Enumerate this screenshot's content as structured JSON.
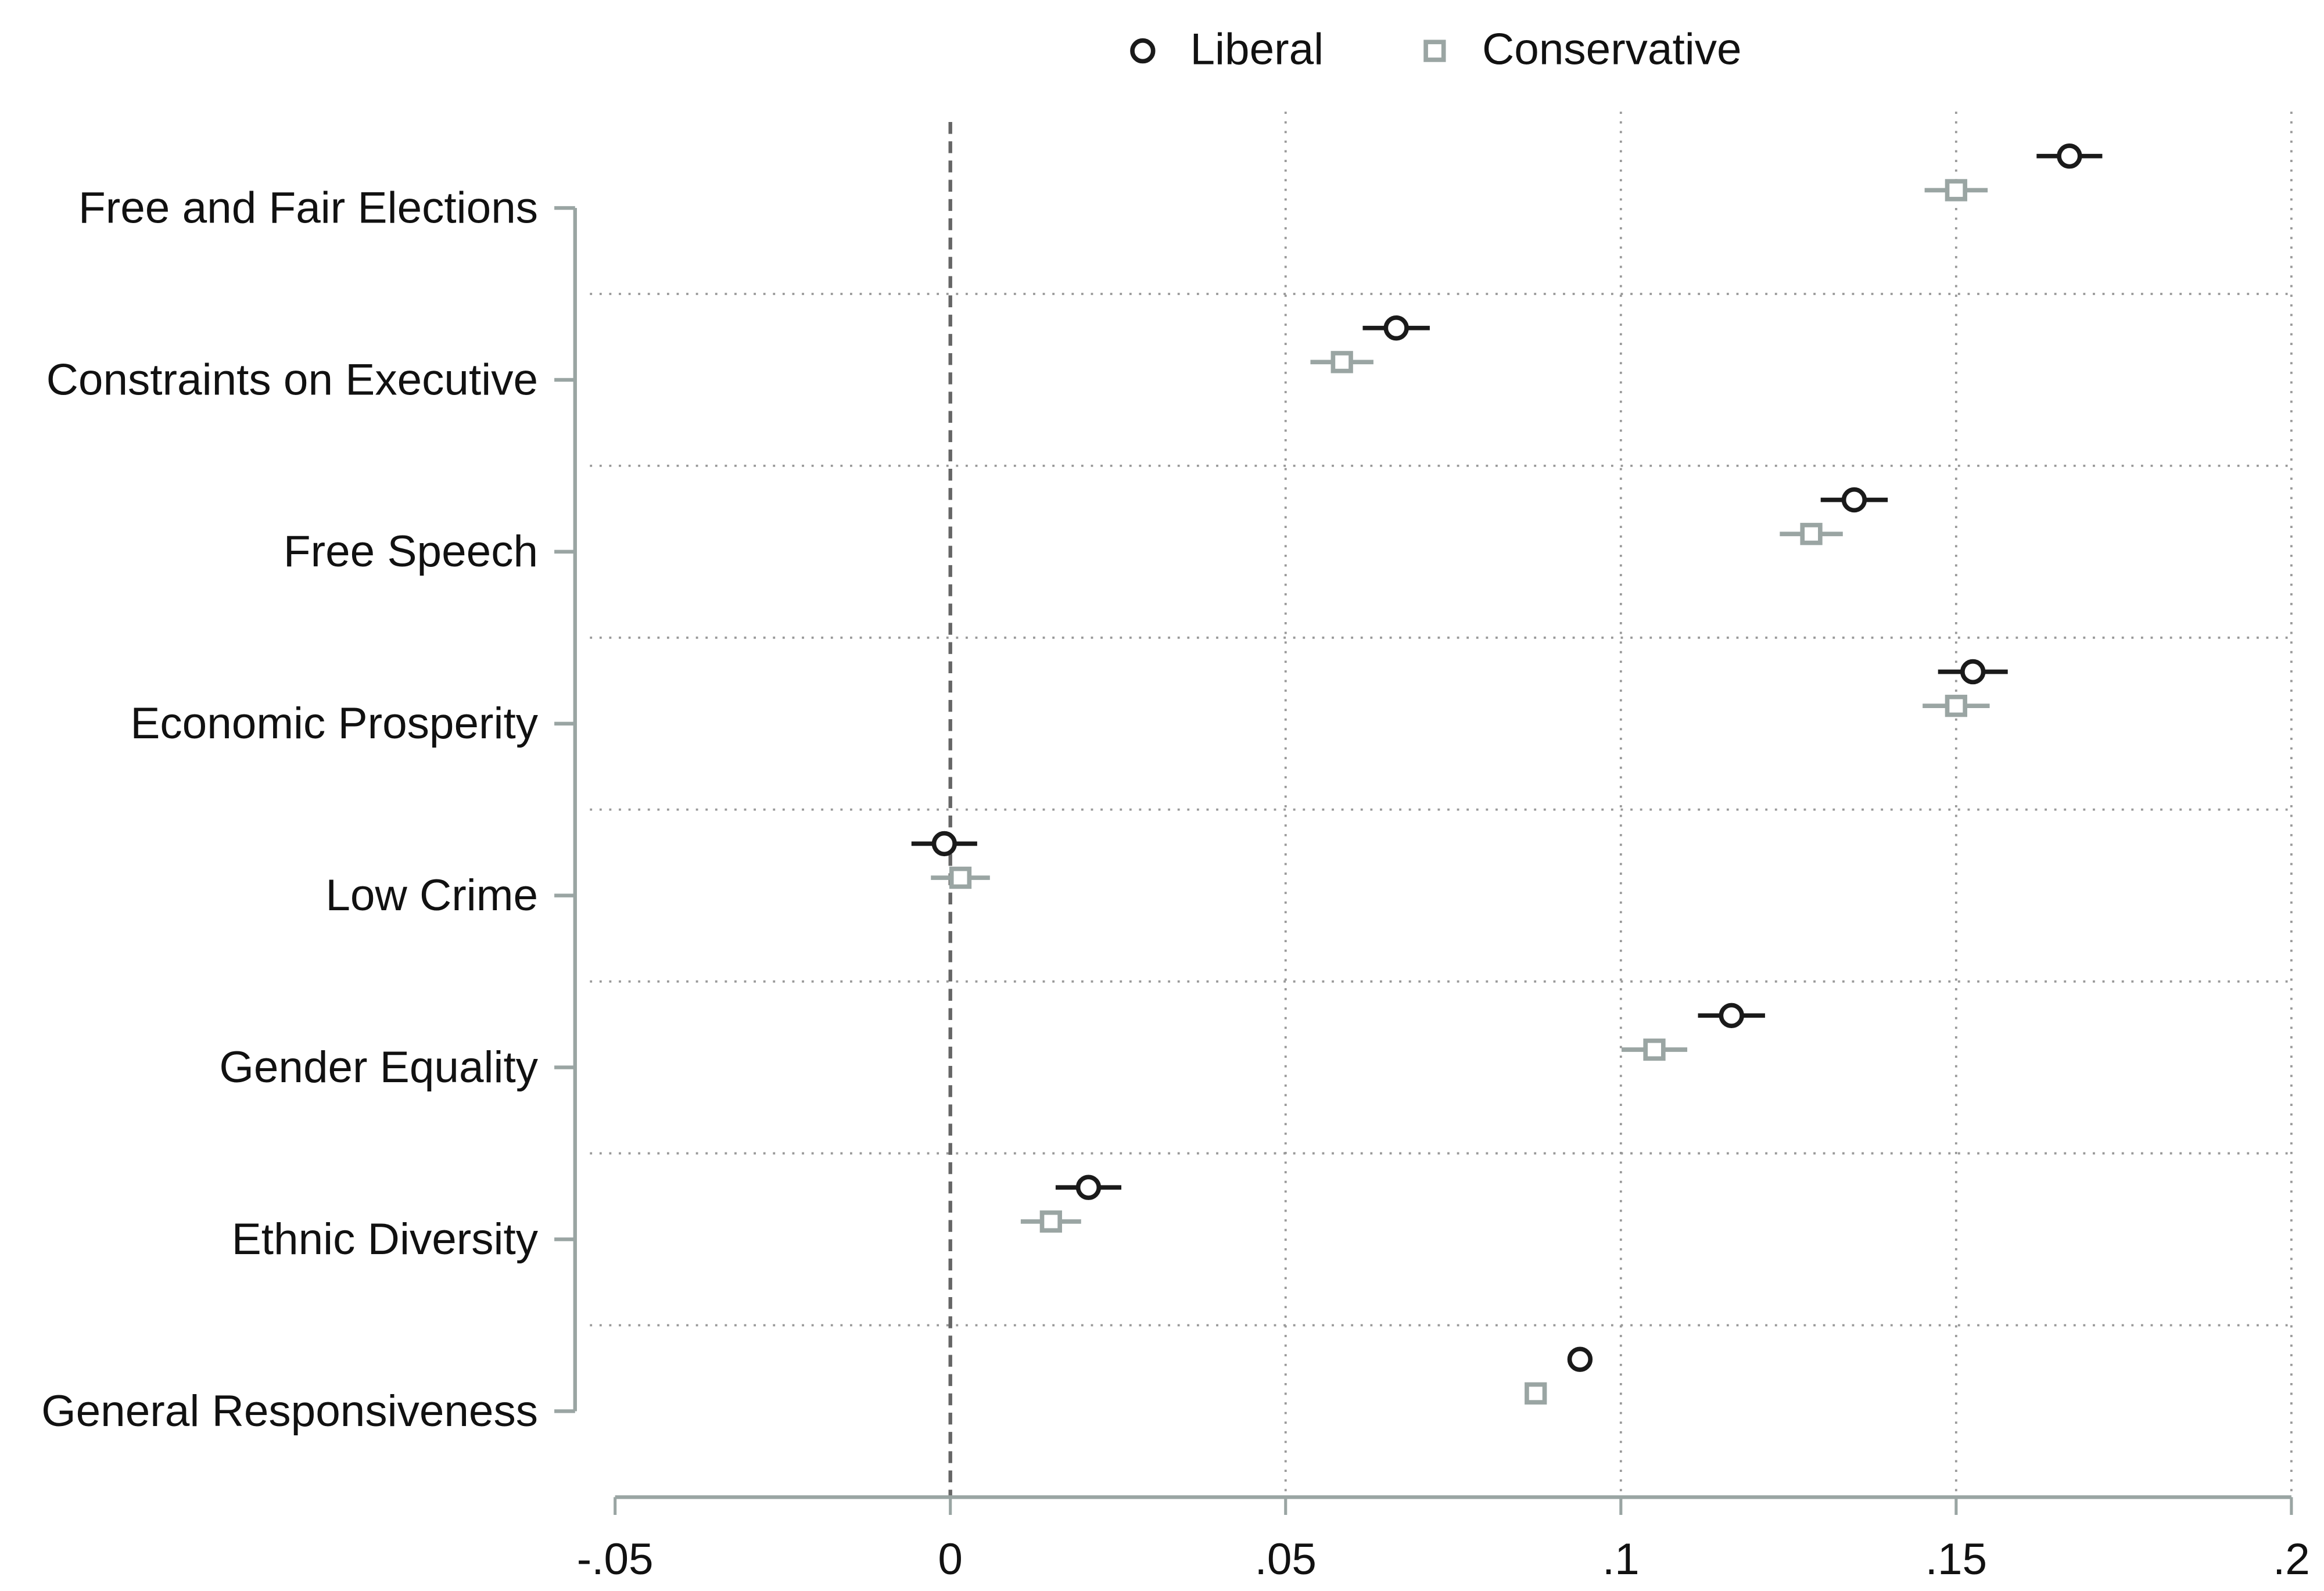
{
  "chart_data": {
    "type": "coefplot",
    "categories": [
      "Free and Fair Elections",
      "Constraints on Executive",
      "Free Speech",
      "Economic Prosperity",
      "Low Crime",
      "Gender Equality",
      "Ethnic Diversity",
      "General Responsiveness"
    ],
    "series": [
      {
        "name": "Liberal",
        "color": "#1a1a1a",
        "marker": "circle",
        "values": [
          0.1669,
          0.0665,
          0.1348,
          0.1525,
          -0.0009,
          0.1165,
          0.0206,
          0.0939
        ],
        "errors": [
          0.0049,
          0.005,
          0.005,
          0.0052,
          0.0049,
          0.005,
          0.0049,
          0.001
        ]
      },
      {
        "name": "Conservative",
        "color": "#9aa5a3",
        "marker": "square",
        "values": [
          0.15,
          0.0584,
          0.1284,
          0.15,
          0.0015,
          0.105,
          0.015,
          0.0873
        ],
        "errors": [
          0.0047,
          0.0047,
          0.0047,
          0.005,
          0.0044,
          0.0049,
          0.0045,
          0.001
        ]
      }
    ],
    "xlim": [
      -0.05,
      0.2
    ],
    "xticks": [
      {
        "value": -0.05,
        "label": "-.05"
      },
      0,
      {
        "value": 0.05,
        "label": ".05"
      },
      {
        "value": 0.1,
        "label": ".1"
      },
      {
        "value": 0.15,
        "label": ".15"
      },
      {
        "value": 0.2,
        "label": ".2"
      }
    ],
    "xline": 0,
    "grid": true
  }
}
